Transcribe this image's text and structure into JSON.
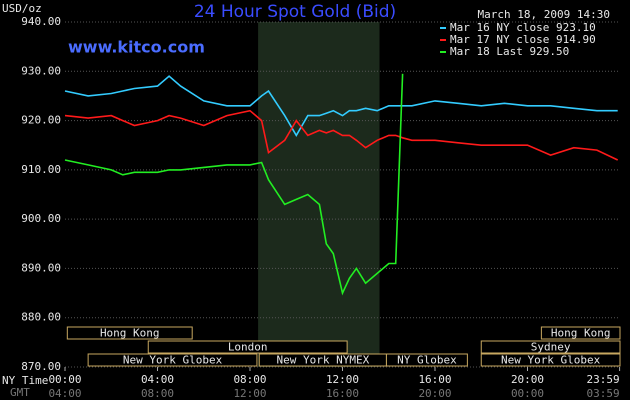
{
  "chart_data": {
    "type": "line",
    "title": "24 Hour Spot Gold (Bid)",
    "y_label": "USD/oz",
    "timestamp": "March 18, 2009 14:30",
    "watermark": "www.kitco.com",
    "x_label": "NY Time",
    "x2_label": "GMT",
    "x": [
      0,
      1,
      2,
      2.5,
      3,
      4,
      4.5,
      5,
      6,
      7,
      8,
      8.5,
      8.8,
      9.5,
      10,
      10.5,
      11,
      11.3,
      11.6,
      12,
      12.3,
      12.6,
      13,
      13.5,
      14,
      14.3,
      14.6,
      15,
      16,
      17,
      18,
      19,
      20,
      21,
      22,
      23,
      23.9
    ],
    "series": [
      {
        "name": "Mar 16 NY close 923.10",
        "color": "#33ccff",
        "values": [
          926,
          925,
          925.5,
          926,
          926.5,
          927,
          929,
          927,
          924,
          923,
          923,
          925,
          926,
          921,
          917,
          921,
          921,
          921.5,
          922,
          921,
          922,
          922,
          922.5,
          922,
          923,
          923,
          923,
          923,
          924,
          923.5,
          923,
          923.5,
          923,
          923,
          922.5,
          922,
          922
        ]
      },
      {
        "name": "Mar 17 NY close 914.90",
        "color": "#ff1a1a",
        "values": [
          921,
          920.5,
          921,
          920,
          919,
          920,
          921,
          920.5,
          919,
          921,
          922,
          920,
          913.5,
          916,
          920,
          917,
          918,
          917.5,
          918,
          917,
          917,
          916,
          914.5,
          916,
          917,
          917,
          916.5,
          916,
          916,
          915.5,
          915,
          915,
          915,
          913,
          914.5,
          914,
          912
        ]
      },
      {
        "name": "Mar 18 Last 929.50",
        "color": "#22ee22",
        "values": [
          912,
          911,
          910,
          909,
          909.5,
          909.5,
          910,
          910,
          910.5,
          911,
          911,
          911.5,
          908,
          903,
          904,
          905,
          903,
          895,
          893,
          885,
          888,
          890,
          887,
          889,
          891,
          891,
          929.5,
          null,
          null,
          null,
          null,
          null,
          null,
          null,
          null,
          null,
          null
        ]
      }
    ],
    "xlim": [
      0,
      24
    ],
    "xticks": [
      {
        "value": 0,
        "label": "00:00"
      },
      {
        "value": 4,
        "label": "04:00"
      },
      {
        "value": 8,
        "label": "08:00"
      },
      {
        "value": 12,
        "label": "12:00"
      },
      {
        "value": 16,
        "label": "16:00"
      },
      {
        "value": 20,
        "label": "20:00"
      },
      {
        "value": 23.983,
        "label": "23:59"
      }
    ],
    "x2_tick_labels": [
      "04:00",
      "08:00",
      "12:00",
      "16:00",
      "20:00",
      "00:00",
      "03:59"
    ],
    "ylim": [
      870,
      940
    ],
    "yticks": [
      {
        "value": 870,
        "label": "870.00"
      },
      {
        "value": 880,
        "label": "880.00"
      },
      {
        "value": 890,
        "label": "890.00"
      },
      {
        "value": 900,
        "label": "900.00"
      },
      {
        "value": 910,
        "label": "910.00"
      },
      {
        "value": 920,
        "label": "920.00"
      },
      {
        "value": 930,
        "label": "930.00"
      },
      {
        "value": 940,
        "label": "940.00"
      }
    ],
    "grid": true,
    "shaded_band": [
      8.35,
      13.6
    ],
    "sessions": [
      {
        "label": "Hong Kong",
        "start": 0.1,
        "end": 5.5,
        "row": 0
      },
      {
        "label": "Hong Kong",
        "start": 20.6,
        "end": 24,
        "row": 0
      },
      {
        "label": "London",
        "start": 3.6,
        "end": 12.2,
        "row": 1
      },
      {
        "label": "Sydney",
        "start": 18,
        "end": 24,
        "row": 1
      },
      {
        "label": "New York Globex",
        "start": 1,
        "end": 8.3,
        "row": 2
      },
      {
        "label": "New York NYMEX",
        "start": 8.4,
        "end": 13.9,
        "row": 2
      },
      {
        "label": "NY Globex",
        "start": 13.9,
        "end": 17.4,
        "row": 2
      },
      {
        "label": "New York Globex",
        "start": 18,
        "end": 24,
        "row": 2
      }
    ]
  }
}
